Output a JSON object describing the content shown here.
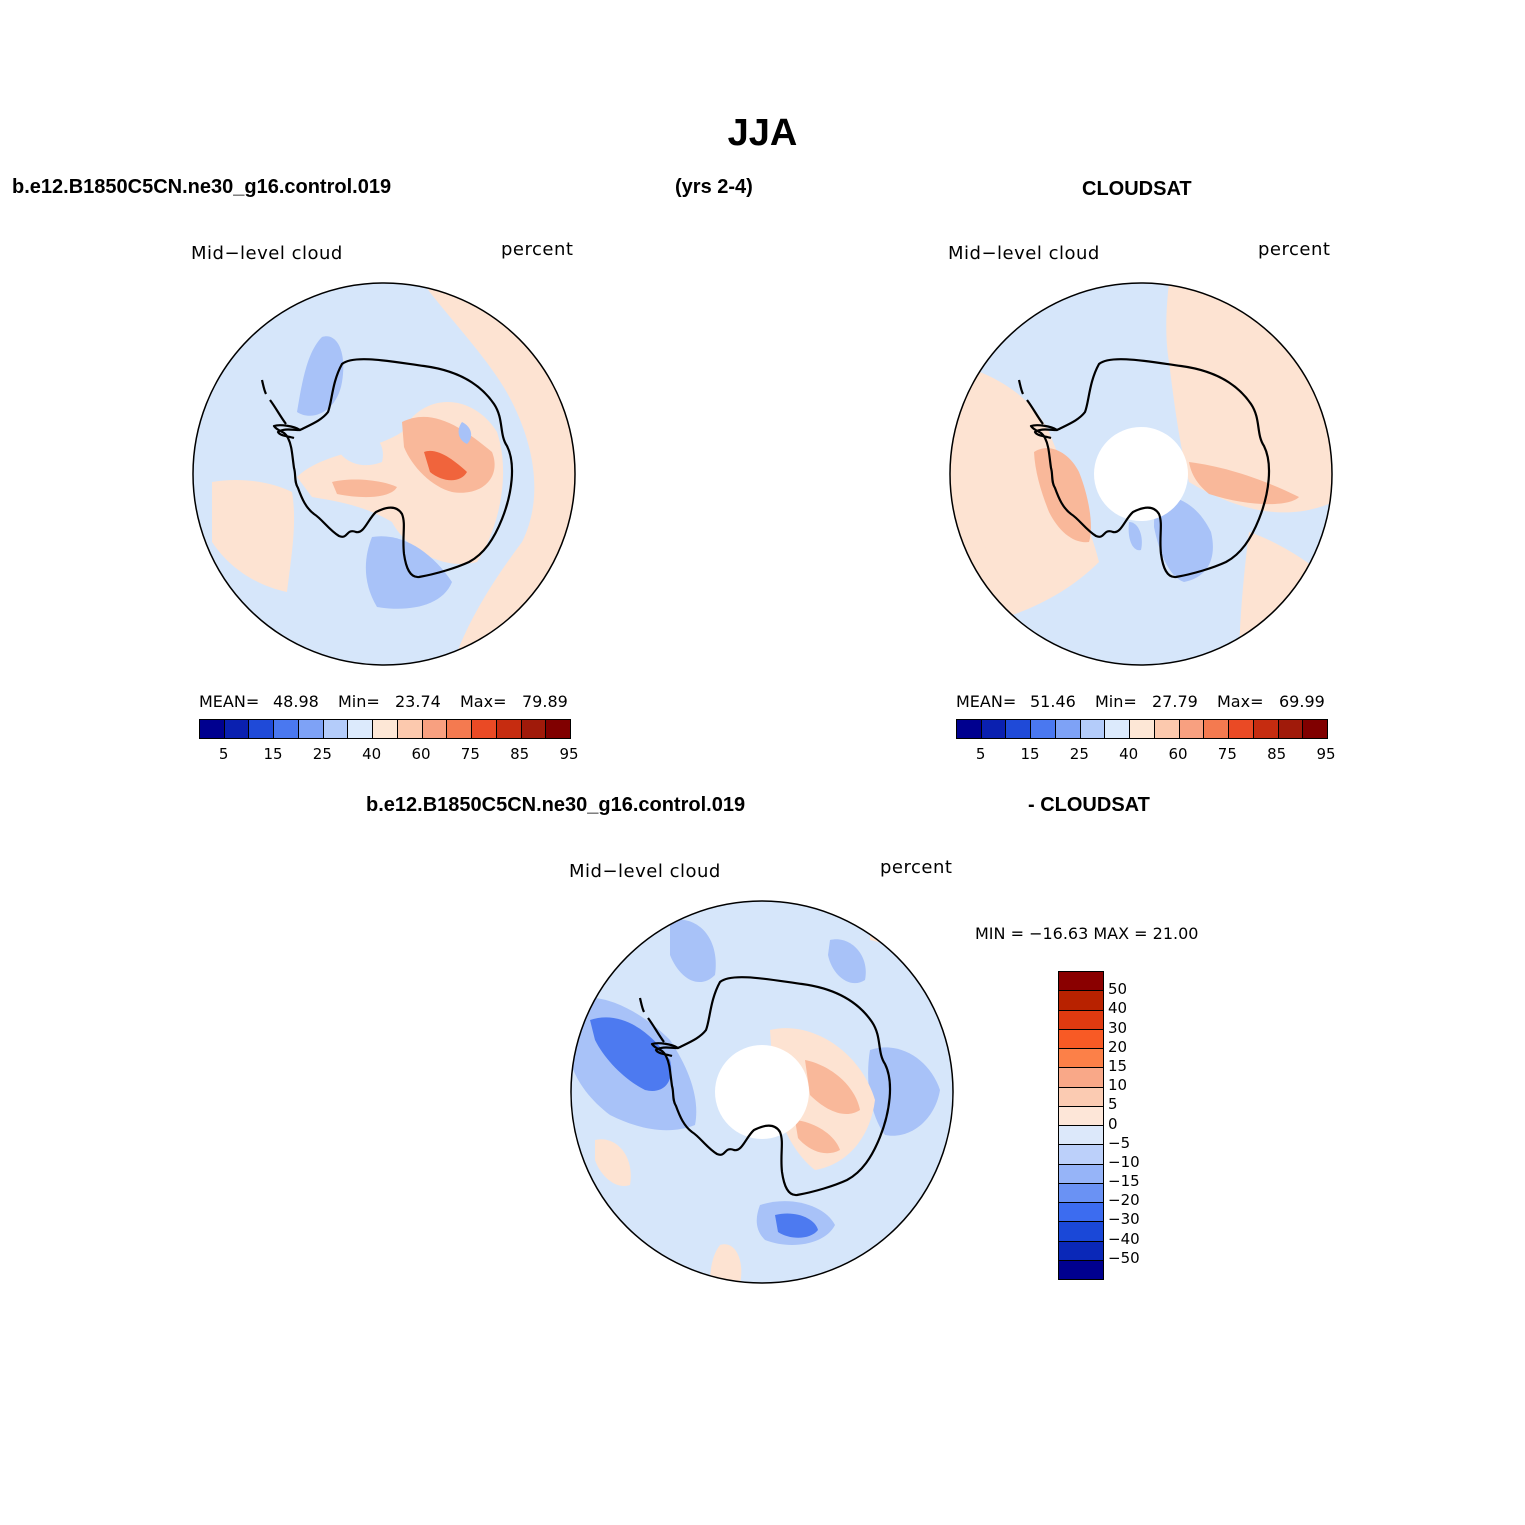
{
  "title": "JJA",
  "colors": {
    "blue_deep": "#4d7af0",
    "blue_mid": "#a8c2f8",
    "blue_light": "#d6e6fa",
    "peach_light": "#fde3d2",
    "peach_mid": "#f9b89a",
    "orange": "#f0643c",
    "coast": "#000000"
  },
  "top_row": {
    "case_name": "b.e12.B1850C5CN.ne30_g16.control.019",
    "years": "(yrs 2-4)",
    "obs_name": "CLOUDSAT"
  },
  "model_panel": {
    "variable": "Mid−level cloud",
    "units": "percent",
    "mean_label": "MEAN=",
    "mean_value": "48.98",
    "min_label": "Min=",
    "min_value": "23.74",
    "max_label": "Max=",
    "max_value": "79.89"
  },
  "obs_panel": {
    "variable": "Mid−level cloud",
    "units": "percent",
    "mean_label": "MEAN=",
    "mean_value": "51.46",
    "min_label": "Min=",
    "min_value": "27.79",
    "max_label": "Max=",
    "max_value": "69.99"
  },
  "abs_colorbar": {
    "colors": [
      "#00008f",
      "#0a20b0",
      "#1f4ad8",
      "#4a78f0",
      "#7ea2f6",
      "#b4ccfa",
      "#dceafc",
      "#fde7d6",
      "#fcc9ae",
      "#f8a080",
      "#f47a50",
      "#ea4a25",
      "#c62c10",
      "#a01a0a",
      "#800000"
    ],
    "tick_labels": [
      "5",
      "15",
      "25",
      "40",
      "60",
      "75",
      "85",
      "95"
    ]
  },
  "diff_row": {
    "case_name": "b.e12.B1850C5CN.ne30_g16.control.019",
    "obs_name": "- CLOUDSAT"
  },
  "diff_panel": {
    "variable": "Mid−level cloud",
    "units": "percent",
    "minmax": "MIN = −16.63  MAX =   21.00"
  },
  "diff_colorbar": {
    "colors": [
      "#8a0000",
      "#b82200",
      "#e03a10",
      "#f85a25",
      "#fc8048",
      "#f9a888",
      "#fbcbb2",
      "#fde6d8",
      "#dce8fa",
      "#bcd0fa",
      "#96b4f8",
      "#6a92f4",
      "#3c6cf0",
      "#1a48d8",
      "#0a28b8",
      "#00008f"
    ],
    "tick_labels": [
      "50",
      "40",
      "30",
      "20",
      "15",
      "10",
      "5",
      "0",
      "−5",
      "−10",
      "−15",
      "−20",
      "−30",
      "−40",
      "−50"
    ]
  }
}
